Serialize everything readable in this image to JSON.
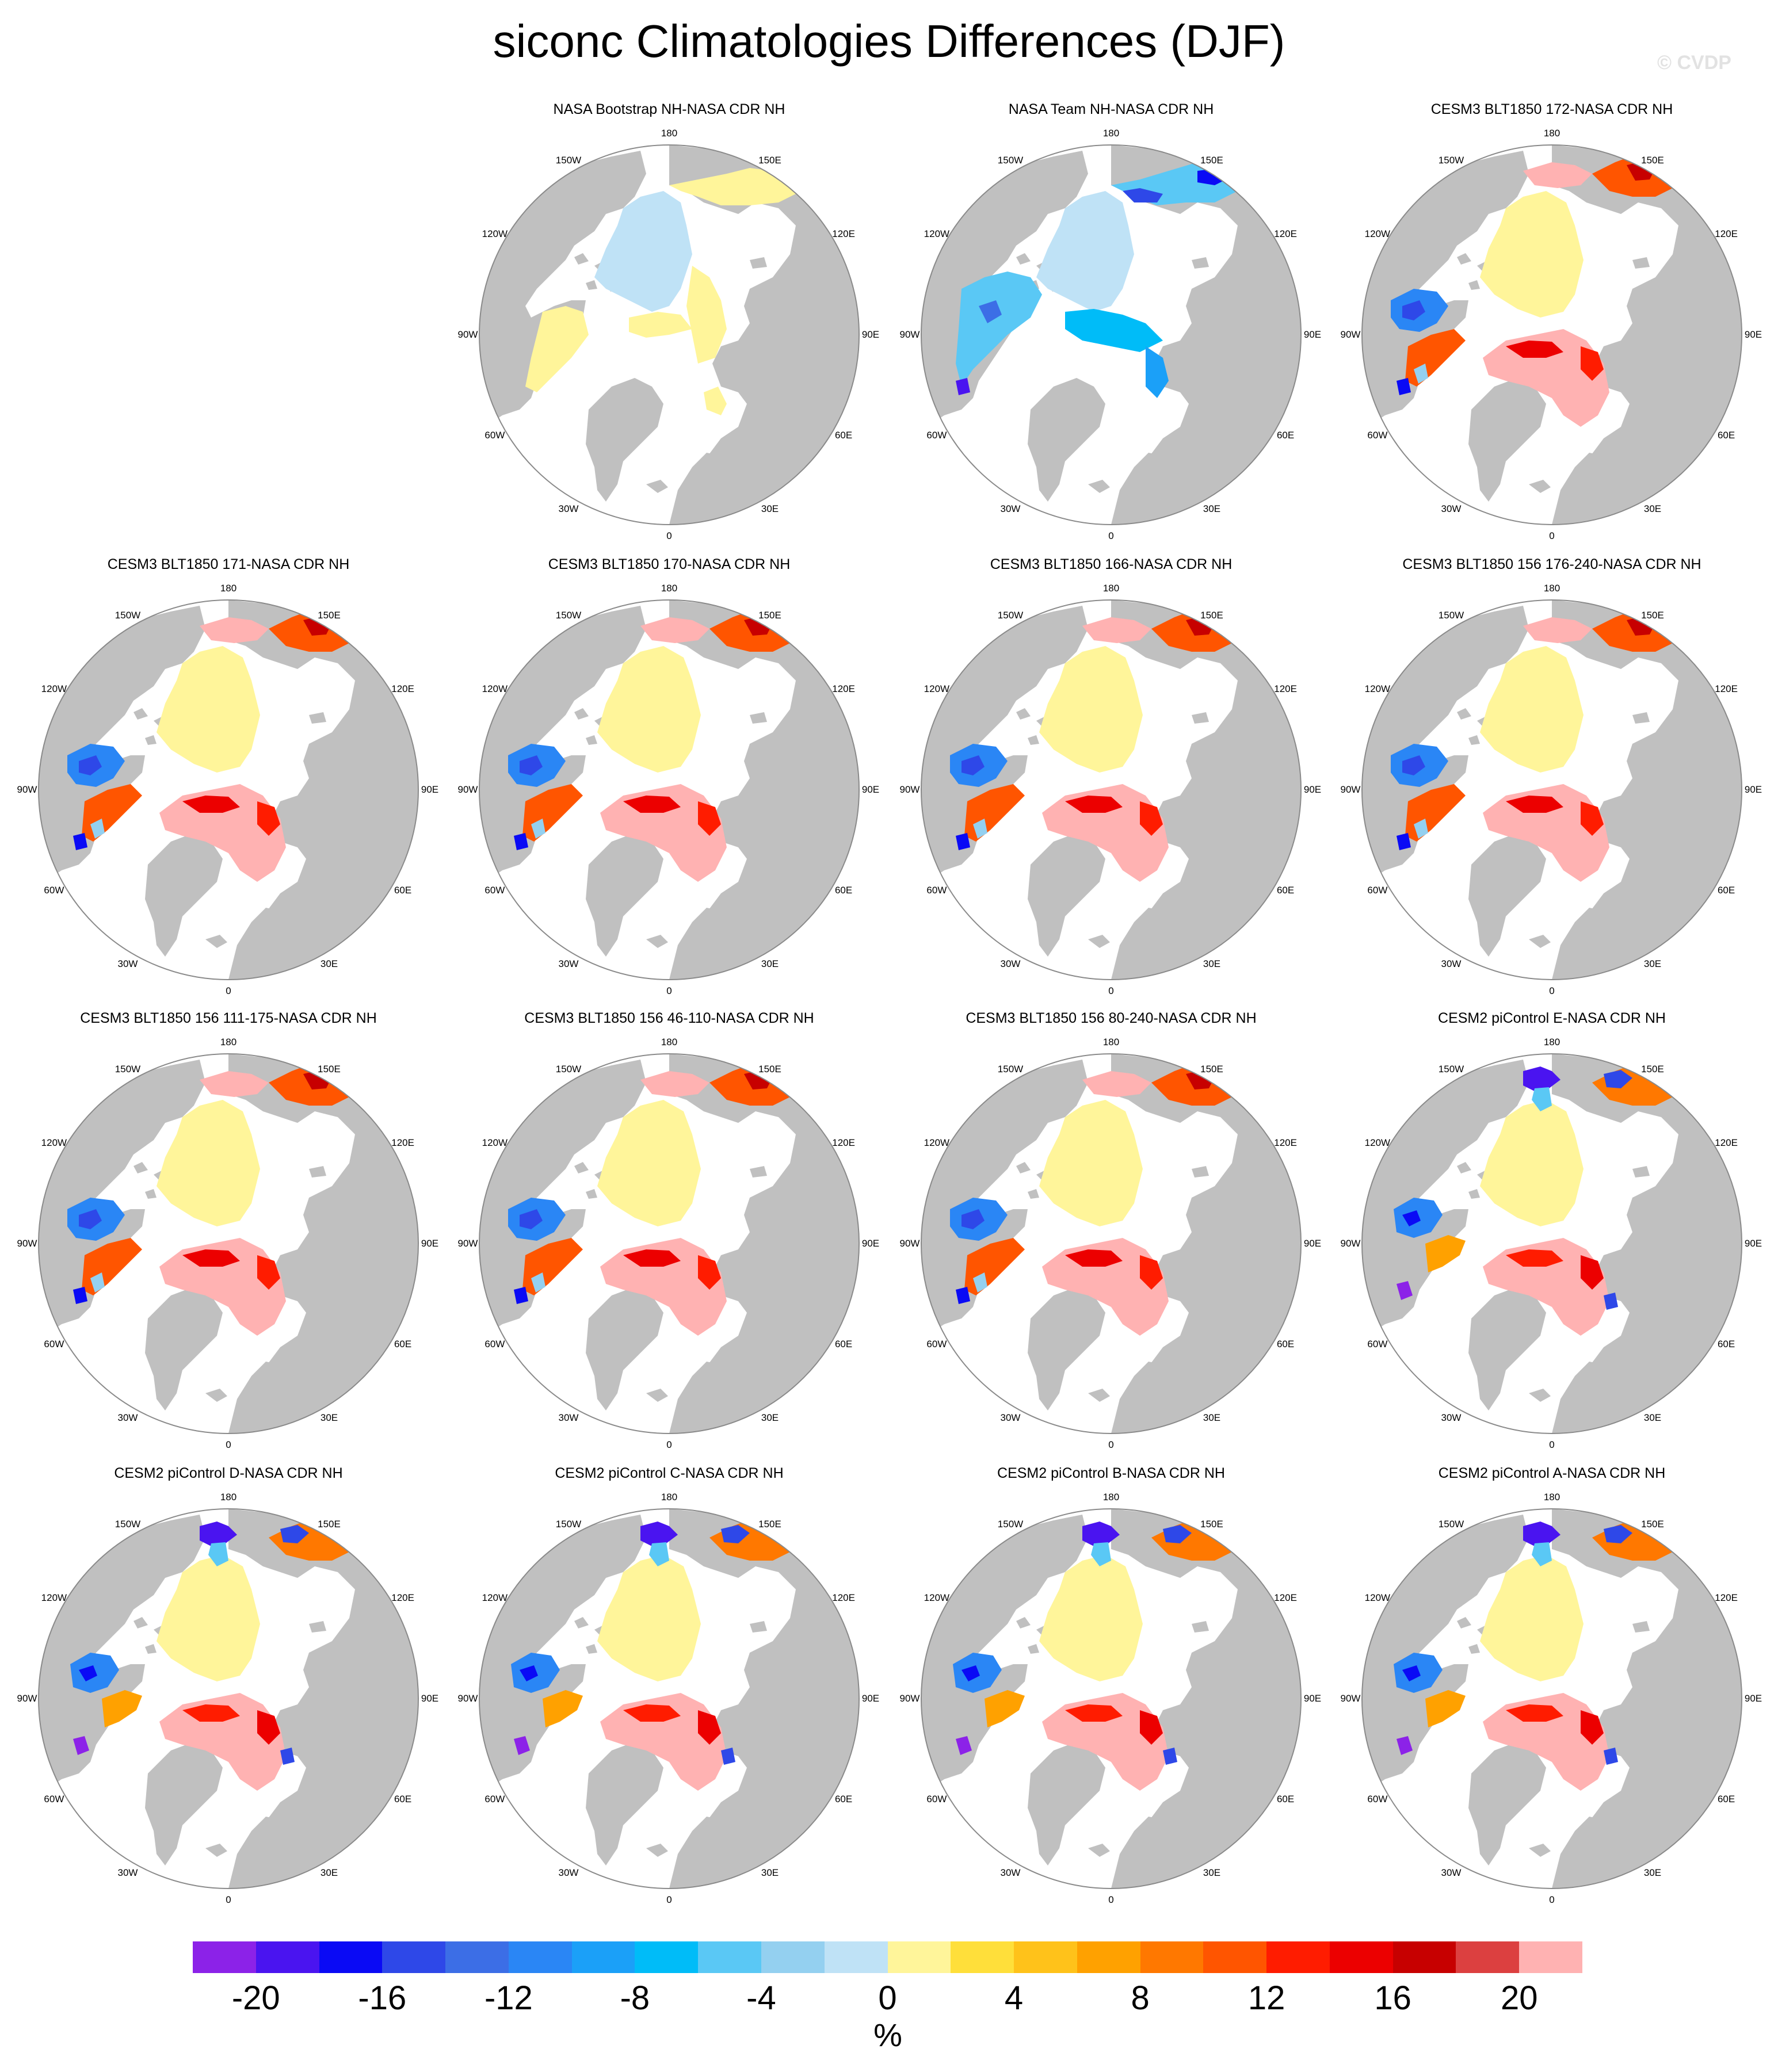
{
  "title": "siconc Climatologies Differences (DJF)",
  "watermark": "© CVDP",
  "colors": {
    "land": "#c0c0c0",
    "ocean_missing": "#ffffff",
    "border": "#8a8a8a"
  },
  "longitude_labels": [
    "180",
    "150E",
    "120E",
    "90E",
    "60E",
    "30E",
    "0",
    "30W",
    "60W",
    "90W",
    "120W",
    "150W"
  ],
  "panels": [
    {
      "title": "NASA Bootstrap NH-NASA CDR NH",
      "pattern": "bootstrap"
    },
    {
      "title": "NASA Team NH-NASA CDR NH",
      "pattern": "team"
    },
    {
      "title": "CESM3 BLT1850 172-NASA CDR NH",
      "pattern": "cesm3"
    },
    {
      "title": "CESM3 BLT1850 171-NASA CDR NH",
      "pattern": "cesm3"
    },
    {
      "title": "CESM3 BLT1850 170-NASA CDR NH",
      "pattern": "cesm3"
    },
    {
      "title": "CESM3 BLT1850 166-NASA CDR NH",
      "pattern": "cesm3"
    },
    {
      "title": "CESM3 BLT1850 156 176-240-NASA CDR NH",
      "pattern": "cesm3"
    },
    {
      "title": "CESM3 BLT1850 156 111-175-NASA CDR NH",
      "pattern": "cesm3"
    },
    {
      "title": "CESM3 BLT1850 156 46-110-NASA CDR NH",
      "pattern": "cesm3"
    },
    {
      "title": "CESM3 BLT1850 156 80-240-NASA CDR NH",
      "pattern": "cesm3"
    },
    {
      "title": "CESM2 piControl E-NASA CDR NH",
      "pattern": "cesm2"
    },
    {
      "title": "CESM2 piControl D-NASA CDR NH",
      "pattern": "cesm2"
    },
    {
      "title": "CESM2 piControl C-NASA CDR NH",
      "pattern": "cesm2"
    },
    {
      "title": "CESM2 piControl B-NASA CDR NH",
      "pattern": "cesm2"
    },
    {
      "title": "CESM2 piControl A-NASA CDR NH",
      "pattern": "cesm2"
    }
  ],
  "colorbar": {
    "unit": "%",
    "tick_labels": [
      "-20",
      "-16",
      "-12",
      "-8",
      "-4",
      "0",
      "4",
      "8",
      "12",
      "16",
      "20"
    ],
    "colors": [
      "#8c22e8",
      "#4a14f0",
      "#0a0af5",
      "#2e48e8",
      "#3c6ee6",
      "#2a86f5",
      "#1ba0f8",
      "#00bcf8",
      "#5ac8f5",
      "#94d0f0",
      "#bfe2f6",
      "#fff59a",
      "#ffdf3a",
      "#ffc21a",
      "#ffa100",
      "#ff7800",
      "#ff5500",
      "#ff1c00",
      "#ec0000",
      "#c70000",
      "#dc4040",
      "#ffb2b2"
    ]
  }
}
